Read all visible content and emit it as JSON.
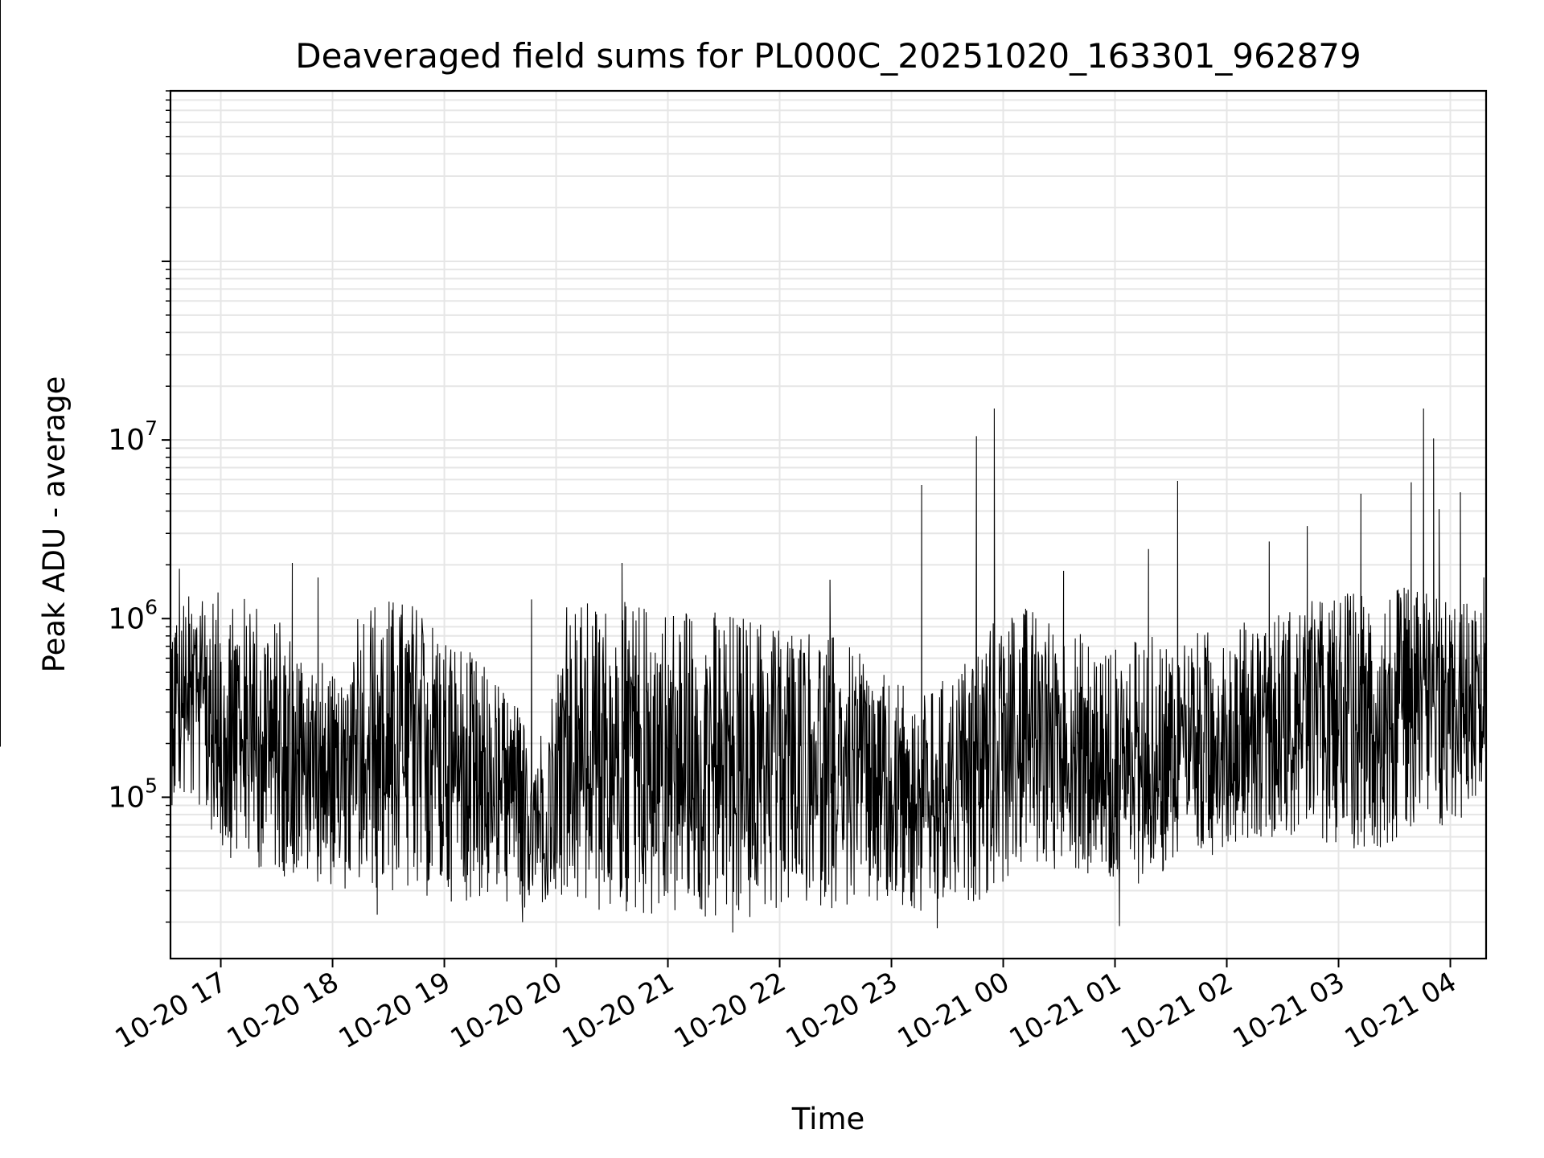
{
  "chart_data": {
    "type": "line",
    "title": "Deaveraged field sums for PL000C_20251020_163301_962879",
    "xlabel": "Time",
    "ylabel": "Peak ADU - average",
    "y_scale": "log",
    "ylim": [
      12500,
      900000000
    ],
    "x_unit": "hours since 10-20 00:00",
    "xlim": [
      16.55,
      28.32
    ],
    "grid": true,
    "line_color": "#000000",
    "grid_color": "#e6e6e6",
    "x_ticks": [
      {
        "value": 17,
        "label": "10-20 17"
      },
      {
        "value": 18,
        "label": "10-20 18"
      },
      {
        "value": 19,
        "label": "10-20 19"
      },
      {
        "value": 20,
        "label": "10-20 20"
      },
      {
        "value": 21,
        "label": "10-20 21"
      },
      {
        "value": 22,
        "label": "10-20 22"
      },
      {
        "value": 23,
        "label": "10-20 23"
      },
      {
        "value": 24,
        "label": "10-21 00"
      },
      {
        "value": 25,
        "label": "10-21 01"
      },
      {
        "value": 26,
        "label": "10-21 02"
      },
      {
        "value": 27,
        "label": "10-21 03"
      },
      {
        "value": 28,
        "label": "10-21 04"
      }
    ],
    "y_ticks": [
      {
        "value": 100000,
        "base": "10",
        "exp": "5"
      },
      {
        "value": 1000000,
        "base": "10",
        "exp": "6"
      },
      {
        "value": 10000000,
        "base": "10",
        "exp": "7"
      }
    ],
    "series": [
      {
        "name": "field sums",
        "envelope": [
          {
            "x": 16.55,
            "low": 90000,
            "high": 1200000
          },
          {
            "x": 16.8,
            "low": 85000,
            "high": 1500000
          },
          {
            "x": 17.0,
            "low": 48000,
            "high": 1400000
          },
          {
            "x": 17.3,
            "low": 40000,
            "high": 1350000
          },
          {
            "x": 17.6,
            "low": 35000,
            "high": 900000
          },
          {
            "x": 17.9,
            "low": 33000,
            "high": 600000
          },
          {
            "x": 18.1,
            "low": 30000,
            "high": 400000
          },
          {
            "x": 18.2,
            "low": 30000,
            "high": 1400000
          },
          {
            "x": 18.5,
            "low": 28000,
            "high": 1350000
          },
          {
            "x": 18.8,
            "low": 27000,
            "high": 1250000
          },
          {
            "x": 19.0,
            "low": 26000,
            "high": 900000
          },
          {
            "x": 19.3,
            "low": 26000,
            "high": 600000
          },
          {
            "x": 19.55,
            "low": 25000,
            "high": 420000
          },
          {
            "x": 19.7,
            "low": 22000,
            "high": 300000
          },
          {
            "x": 19.9,
            "low": 24000,
            "high": 250000
          },
          {
            "x": 20.1,
            "low": 22000,
            "high": 1300000
          },
          {
            "x": 20.5,
            "low": 21000,
            "high": 1250000
          },
          {
            "x": 20.9,
            "low": 21000,
            "high": 1250000
          },
          {
            "x": 21.3,
            "low": 20000,
            "high": 1200000
          },
          {
            "x": 21.6,
            "low": 18000,
            "high": 1100000
          },
          {
            "x": 22.0,
            "low": 23000,
            "high": 1000000
          },
          {
            "x": 22.4,
            "low": 24000,
            "high": 900000
          },
          {
            "x": 22.7,
            "low": 23000,
            "high": 650000
          },
          {
            "x": 23.0,
            "low": 22000,
            "high": 450000
          },
          {
            "x": 23.3,
            "low": 20000,
            "high": 380000
          },
          {
            "x": 23.6,
            "low": 24000,
            "high": 550000
          },
          {
            "x": 23.9,
            "low": 28000,
            "high": 1000000
          },
          {
            "x": 24.2,
            "low": 40000,
            "high": 1200000
          },
          {
            "x": 24.6,
            "low": 38000,
            "high": 900000
          },
          {
            "x": 25.0,
            "low": 28000,
            "high": 700000
          },
          {
            "x": 25.3,
            "low": 35000,
            "high": 800000
          },
          {
            "x": 25.7,
            "low": 38000,
            "high": 850000
          },
          {
            "x": 26.0,
            "low": 55000,
            "high": 900000
          },
          {
            "x": 26.4,
            "low": 60000,
            "high": 1100000
          },
          {
            "x": 26.8,
            "low": 55000,
            "high": 1300000
          },
          {
            "x": 27.2,
            "low": 50000,
            "high": 1500000
          },
          {
            "x": 27.6,
            "low": 55000,
            "high": 1500000
          },
          {
            "x": 28.0,
            "low": 60000,
            "high": 1400000
          },
          {
            "x": 28.32,
            "low": 120000,
            "high": 1100000
          }
        ],
        "spikes": [
          {
            "x": 16.63,
            "y": 1900000
          },
          {
            "x": 17.64,
            "y": 2050000
          },
          {
            "x": 17.87,
            "y": 1700000
          },
          {
            "x": 18.4,
            "y": 22000
          },
          {
            "x": 19.7,
            "y": 20000
          },
          {
            "x": 19.78,
            "y": 1280000
          },
          {
            "x": 20.59,
            "y": 2050000
          },
          {
            "x": 21.58,
            "y": 17500
          },
          {
            "x": 22.45,
            "y": 1650000
          },
          {
            "x": 23.27,
            "y": 5600000
          },
          {
            "x": 23.41,
            "y": 18500
          },
          {
            "x": 23.76,
            "y": 10500000
          },
          {
            "x": 23.92,
            "y": 15000000
          },
          {
            "x": 24.54,
            "y": 1850000
          },
          {
            "x": 25.04,
            "y": 19000
          },
          {
            "x": 25.3,
            "y": 2450000
          },
          {
            "x": 25.56,
            "y": 5900000
          },
          {
            "x": 26.38,
            "y": 2700000
          },
          {
            "x": 26.72,
            "y": 3300000
          },
          {
            "x": 27.2,
            "y": 5000000
          },
          {
            "x": 27.65,
            "y": 5800000
          },
          {
            "x": 27.76,
            "y": 15000000
          },
          {
            "x": 27.85,
            "y": 10200000
          },
          {
            "x": 27.9,
            "y": 4100000
          },
          {
            "x": 28.09,
            "y": 5100000
          },
          {
            "x": 28.3,
            "y": 1700000
          }
        ]
      }
    ]
  }
}
